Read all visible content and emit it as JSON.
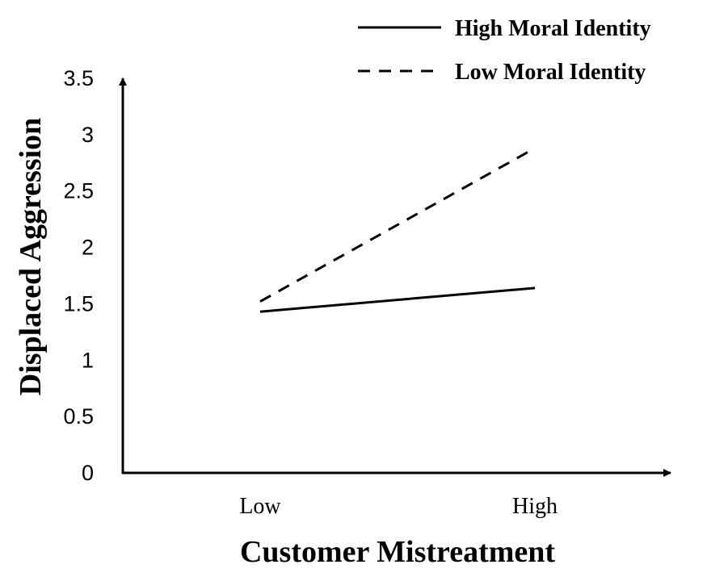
{
  "chart_data": {
    "type": "line",
    "title": "",
    "xlabel": "Customer Mistreatment",
    "ylabel": "Displaced Aggression",
    "categories": [
      "Low",
      "High"
    ],
    "yticks": [
      "0",
      "0.5",
      "1",
      "1.5",
      "2",
      "2.5",
      "3",
      "3.5"
    ],
    "ylim": [
      0,
      3.5
    ],
    "grid": false,
    "legend_position": "top-right",
    "series": [
      {
        "name": "High Moral Identity",
        "line_style": "solid",
        "color": "#000000",
        "values": [
          1.43,
          1.64
        ]
      },
      {
        "name": "Low Moral Identity",
        "line_style": "dashed",
        "color": "#000000",
        "values": [
          1.52,
          2.88
        ]
      }
    ]
  }
}
